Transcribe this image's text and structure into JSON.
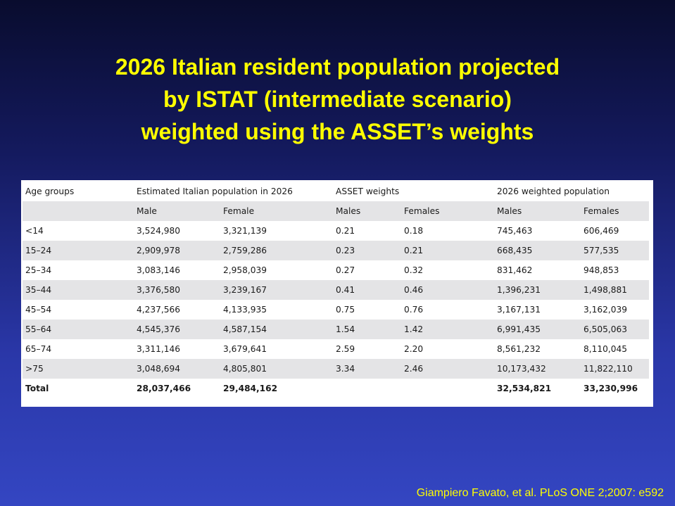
{
  "title": {
    "line1": "2026 Italian resident population projected",
    "line2": "by ISTAT (intermediate scenario)",
    "line3": "weighted using the ASSET’s weights"
  },
  "table": {
    "group_headers": {
      "age": "Age groups",
      "estimated": "Estimated Italian population in 2026",
      "weights": "ASSET weights",
      "weighted": "2026 weighted population"
    },
    "sub_headers": {
      "est_male": "Male",
      "est_female": "Female",
      "w_males": "Males",
      "w_females": "Females",
      "p_males": "Males",
      "p_females": "Females"
    },
    "rows": [
      {
        "age": "<14",
        "male": "3,524,980",
        "female": "3,321,139",
        "w_male": "0.21",
        "w_female": "0.18",
        "p_male": "745,463",
        "p_female": "606,469"
      },
      {
        "age": "15–24",
        "male": "2,909,978",
        "female": "2,759,286",
        "w_male": "0.23",
        "w_female": "0.21",
        "p_male": "668,435",
        "p_female": "577,535"
      },
      {
        "age": "25–34",
        "male": "3,083,146",
        "female": "2,958,039",
        "w_male": "0.27",
        "w_female": "0.32",
        "p_male": "831,462",
        "p_female": "948,853"
      },
      {
        "age": "35–44",
        "male": "3,376,580",
        "female": "3,239,167",
        "w_male": "0.41",
        "w_female": "0.46",
        "p_male": "1,396,231",
        "p_female": "1,498,881"
      },
      {
        "age": "45–54",
        "male": "4,237,566",
        "female": "4,133,935",
        "w_male": "0.75",
        "w_female": "0.76",
        "p_male": "3,167,131",
        "p_female": "3,162,039"
      },
      {
        "age": "55–64",
        "male": "4,545,376",
        "female": "4,587,154",
        "w_male": "1.54",
        "w_female": "1.42",
        "p_male": "6,991,435",
        "p_female": "6,505,063"
      },
      {
        "age": "65–74",
        "male": "3,311,146",
        "female": "3,679,641",
        "w_male": "2.59",
        "w_female": "2.20",
        "p_male": "8,561,232",
        "p_female": "8,110,045"
      },
      {
        "age": ">75",
        "male": "3,048,694",
        "female": "4,805,801",
        "w_male": "3.34",
        "w_female": "2.46",
        "p_male": "10,173,432",
        "p_female": "11,822,110"
      }
    ],
    "total": {
      "label": "Total",
      "male": "28,037,466",
      "female": "29,484,162",
      "p_male": "32,534,821",
      "p_female": "33,230,996"
    }
  },
  "citation": "Giampiero Favato, et al. PLoS ONE 2;2007: e592",
  "colors": {
    "title_text": "#ffff00",
    "citation_text": "#ffff00",
    "background_top": "#090c2e",
    "background_bottom": "#3446c2",
    "row_shade": "#e4e4e6"
  }
}
